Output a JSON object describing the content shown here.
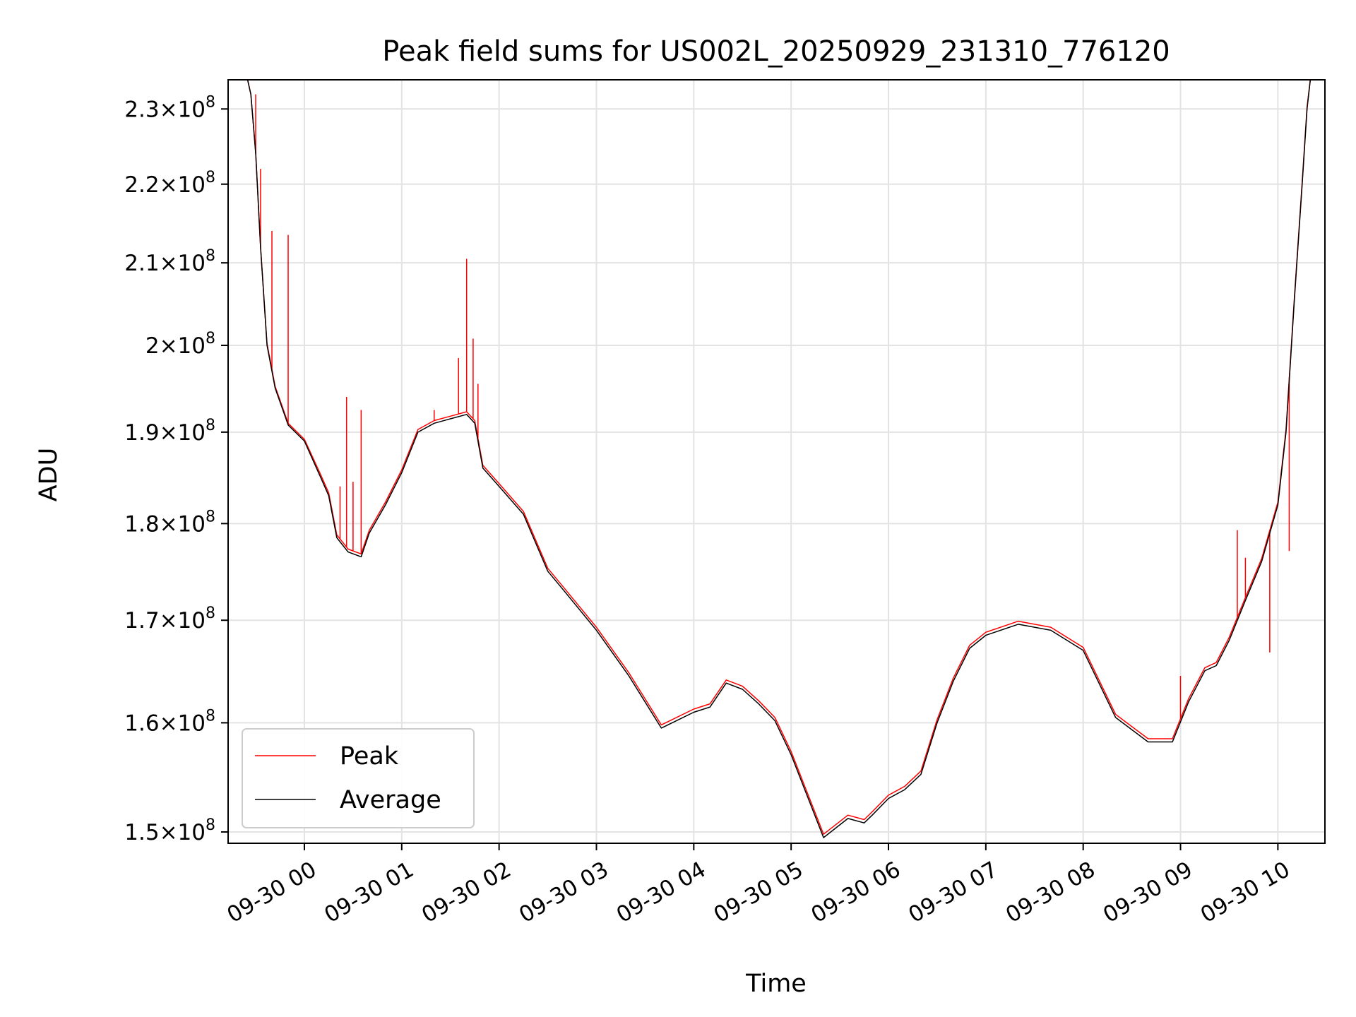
{
  "chart_data": {
    "type": "line",
    "title": "Peak field sums for US002L_20250929_231310_776120",
    "xlabel": "Time",
    "ylabel": "ADU",
    "y_scale": "log",
    "grid": true,
    "legend_position": "lower-left",
    "x_start": "2025-09-29 23:13",
    "x_end": "2025-09-30 10:29",
    "ylim": [
      149000000,
      234000000
    ],
    "x_ticks": [
      {
        "time": "2025-09-30 00:00",
        "label": "09-30 00"
      },
      {
        "time": "2025-09-30 01:00",
        "label": "09-30 01"
      },
      {
        "time": "2025-09-30 02:00",
        "label": "09-30 02"
      },
      {
        "time": "2025-09-30 03:00",
        "label": "09-30 03"
      },
      {
        "time": "2025-09-30 04:00",
        "label": "09-30 04"
      },
      {
        "time": "2025-09-30 05:00",
        "label": "09-30 05"
      },
      {
        "time": "2025-09-30 06:00",
        "label": "09-30 06"
      },
      {
        "time": "2025-09-30 07:00",
        "label": "09-30 07"
      },
      {
        "time": "2025-09-30 08:00",
        "label": "09-30 08"
      },
      {
        "time": "2025-09-30 09:00",
        "label": "09-30 09"
      },
      {
        "time": "2025-09-30 10:00",
        "label": "09-30 10"
      }
    ],
    "y_ticks": [
      {
        "value": 150000000,
        "mant": "1.5",
        "exp": "8"
      },
      {
        "value": 160000000,
        "mant": "1.6",
        "exp": "8"
      },
      {
        "value": 170000000,
        "mant": "1.7",
        "exp": "8"
      },
      {
        "value": 180000000,
        "mant": "1.8",
        "exp": "8"
      },
      {
        "value": 190000000,
        "mant": "1.9",
        "exp": "8"
      },
      {
        "value": 200000000,
        "mant": "2",
        "exp": "8"
      },
      {
        "value": 210000000,
        "mant": "2.1",
        "exp": "8"
      },
      {
        "value": 220000000,
        "mant": "2.2",
        "exp": "8"
      },
      {
        "value": 230000000,
        "mant": "2.3",
        "exp": "8"
      }
    ],
    "series": [
      {
        "name": "Average",
        "color": "#000000",
        "x": [
          "2025-09-29 23:13",
          "2025-09-29 23:20",
          "2025-09-29 23:24",
          "2025-09-29 23:27",
          "2025-09-29 23:30",
          "2025-09-29 23:33",
          "2025-09-29 23:37",
          "2025-09-29 23:42",
          "2025-09-29 23:50",
          "2025-09-30 00:00",
          "2025-09-30 00:10",
          "2025-09-30 00:15",
          "2025-09-30 00:20",
          "2025-09-30 00:27",
          "2025-09-30 00:35",
          "2025-09-30 00:40",
          "2025-09-30 00:50",
          "2025-09-30 01:00",
          "2025-09-30 01:10",
          "2025-09-30 01:20",
          "2025-09-30 01:30",
          "2025-09-30 01:40",
          "2025-09-30 01:45",
          "2025-09-30 01:50",
          "2025-09-30 02:00",
          "2025-09-30 02:15",
          "2025-09-30 02:30",
          "2025-09-30 02:40",
          "2025-09-30 03:00",
          "2025-09-30 03:20",
          "2025-09-30 03:40",
          "2025-09-30 04:00",
          "2025-09-30 04:10",
          "2025-09-30 04:20",
          "2025-09-30 04:30",
          "2025-09-30 04:40",
          "2025-09-30 04:50",
          "2025-09-30 05:00",
          "2025-09-30 05:20",
          "2025-09-30 05:35",
          "2025-09-30 05:45",
          "2025-09-30 05:50",
          "2025-09-30 06:00",
          "2025-09-30 06:10",
          "2025-09-30 06:20",
          "2025-09-30 06:30",
          "2025-09-30 06:40",
          "2025-09-30 06:50",
          "2025-09-30 07:00",
          "2025-09-30 07:20",
          "2025-09-30 07:40",
          "2025-09-30 08:00",
          "2025-09-30 08:20",
          "2025-09-30 08:40",
          "2025-09-30 08:55",
          "2025-09-30 09:05",
          "2025-09-30 09:15",
          "2025-09-30 09:22",
          "2025-09-30 09:30",
          "2025-09-30 09:40",
          "2025-09-30 09:50",
          "2025-09-30 10:00",
          "2025-09-30 10:05",
          "2025-09-30 10:10",
          "2025-09-30 10:15",
          "2025-09-30 10:18",
          "2025-09-30 10:20",
          "2025-09-30 10:24",
          "2025-09-30 10:27",
          "2025-09-30 10:29"
        ],
        "y": [
          234000000,
          234000000,
          235000000,
          232000000,
          224000000,
          212000000,
          200000000,
          195000000,
          190800000,
          189000000,
          185000000,
          183000000,
          178500000,
          177000000,
          176500000,
          179000000,
          182000000,
          185500000,
          190000000,
          191000000,
          191500000,
          192000000,
          191000000,
          186000000,
          184000000,
          181000000,
          175000000,
          173000000,
          169000000,
          164500000,
          159500000,
          161000000,
          161500000,
          163800000,
          163200000,
          161800000,
          160200000,
          157000000,
          149500000,
          151200000,
          150800000,
          151500000,
          153000000,
          153800000,
          155200000,
          160000000,
          164000000,
          167200000,
          168500000,
          169600000,
          169000000,
          167000000,
          160500000,
          158200000,
          158200000,
          162000000,
          165000000,
          165500000,
          168000000,
          172000000,
          176000000,
          182000000,
          190000000,
          205000000,
          220000000,
          230000000,
          234000000,
          234000000,
          234000000,
          234000000
        ]
      },
      {
        "name": "Peak",
        "color": "#ff0000",
        "x": [
          "2025-09-29 23:13",
          "2025-09-29 23:20",
          "2025-09-29 23:24",
          "2025-09-29 23:27",
          "2025-09-29 23:30",
          "2025-09-29 23:33",
          "2025-09-29 23:37",
          "2025-09-29 23:42",
          "2025-09-29 23:50",
          "2025-09-30 00:00",
          "2025-09-30 00:10",
          "2025-09-30 00:15",
          "2025-09-30 00:20",
          "2025-09-30 00:27",
          "2025-09-30 00:35",
          "2025-09-30 00:40",
          "2025-09-30 00:50",
          "2025-09-30 01:00",
          "2025-09-30 01:10",
          "2025-09-30 01:20",
          "2025-09-30 01:30",
          "2025-09-30 01:40",
          "2025-09-30 01:45",
          "2025-09-30 01:50",
          "2025-09-30 02:00",
          "2025-09-30 02:15",
          "2025-09-30 02:30",
          "2025-09-30 02:40",
          "2025-09-30 03:00",
          "2025-09-30 03:20",
          "2025-09-30 03:40",
          "2025-09-30 04:00",
          "2025-09-30 04:10",
          "2025-09-30 04:20",
          "2025-09-30 04:30",
          "2025-09-30 04:40",
          "2025-09-30 04:50",
          "2025-09-30 05:00",
          "2025-09-30 05:20",
          "2025-09-30 05:35",
          "2025-09-30 05:45",
          "2025-09-30 05:50",
          "2025-09-30 06:00",
          "2025-09-30 06:10",
          "2025-09-30 06:20",
          "2025-09-30 06:30",
          "2025-09-30 06:40",
          "2025-09-30 06:50",
          "2025-09-30 07:00",
          "2025-09-30 07:20",
          "2025-09-30 07:40",
          "2025-09-30 08:00",
          "2025-09-30 08:20",
          "2025-09-30 08:40",
          "2025-09-30 08:55",
          "2025-09-30 09:05",
          "2025-09-30 09:15",
          "2025-09-30 09:22",
          "2025-09-30 09:30",
          "2025-09-30 09:40",
          "2025-09-30 09:50",
          "2025-09-30 10:00",
          "2025-09-30 10:05",
          "2025-09-30 10:10",
          "2025-09-30 10:15",
          "2025-09-30 10:18",
          "2025-09-30 10:20",
          "2025-09-30 10:24",
          "2025-09-30 10:27",
          "2025-09-30 10:29"
        ],
        "y": [
          234000000,
          234000000,
          235000000,
          232000000,
          224000000,
          212000000,
          200200000,
          195200000,
          191000000,
          189200000,
          185300000,
          183300000,
          178800000,
          177300000,
          176800000,
          179300000,
          182300000,
          185800000,
          190300000,
          191300000,
          191800000,
          192300000,
          191300000,
          186300000,
          184300000,
          181300000,
          175300000,
          173300000,
          169300000,
          164800000,
          159800000,
          161300000,
          161800000,
          164100000,
          163500000,
          162100000,
          160500000,
          157300000,
          149800000,
          151500000,
          151100000,
          151800000,
          153300000,
          154100000,
          155500000,
          160300000,
          164300000,
          167500000,
          168800000,
          169900000,
          169300000,
          167300000,
          160800000,
          158500000,
          158500000,
          162300000,
          165300000,
          165800000,
          168300000,
          172300000,
          176300000,
          182300000,
          190300000,
          205300000,
          220300000,
          230300000,
          234000000,
          234000000,
          234000000,
          234000000
        ],
        "spikes": [
          {
            "x": "2025-09-29 23:30",
            "y": 232000000
          },
          {
            "x": "2025-09-29 23:33",
            "y": 222000000
          },
          {
            "x": "2025-09-29 23:40",
            "y": 214000000
          },
          {
            "x": "2025-09-29 23:50",
            "y": 213500000
          },
          {
            "x": "2025-09-30 00:22",
            "y": 184000000
          },
          {
            "x": "2025-09-30 00:26",
            "y": 194000000
          },
          {
            "x": "2025-09-30 00:30",
            "y": 184500000
          },
          {
            "x": "2025-09-30 00:35",
            "y": 192500000
          },
          {
            "x": "2025-09-30 01:20",
            "y": 192500000
          },
          {
            "x": "2025-09-30 01:35",
            "y": 198500000
          },
          {
            "x": "2025-09-30 01:40",
            "y": 210500000
          },
          {
            "x": "2025-09-30 01:44",
            "y": 200800000
          },
          {
            "x": "2025-09-30 01:47",
            "y": 195500000
          },
          {
            "x": "2025-09-30 09:00",
            "y": 164500000
          },
          {
            "x": "2025-09-30 09:35",
            "y": 179300000
          },
          {
            "x": "2025-09-30 09:40",
            "y": 176400000
          },
          {
            "x": "2025-09-30 09:55",
            "y": 166800000
          },
          {
            "x": "2025-09-30 10:07",
            "y": 177100000
          }
        ]
      }
    ],
    "legend": [
      {
        "label": "Peak",
        "color": "#ff0000"
      },
      {
        "label": "Average",
        "color": "#000000"
      }
    ]
  }
}
